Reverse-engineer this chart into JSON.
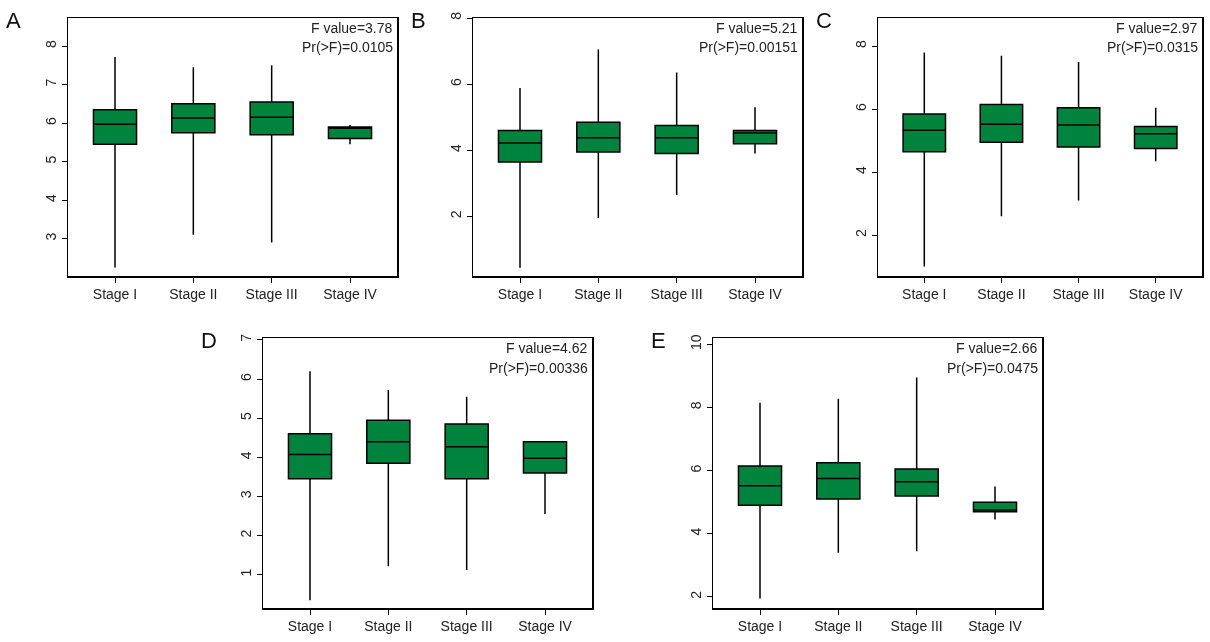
{
  "chart_data": [
    {
      "type": "box",
      "title": "A",
      "categories": [
        "Stage I",
        "Stage II",
        "Stage III",
        "Stage IV"
      ],
      "ylim": [
        2.03,
        8.73
      ],
      "yticks": [
        3,
        4,
        5,
        6,
        7,
        8
      ],
      "grid": false,
      "annotations": [
        "F value=3.78",
        "Pr(>F)=0.0105"
      ],
      "series": [
        {
          "color": "#00843d",
          "boxes": [
            {
              "low": 2.25,
              "q1": 5.45,
              "median": 5.97,
              "q3": 6.35,
              "high": 7.72
            },
            {
              "low": 3.1,
              "q1": 5.75,
              "median": 6.13,
              "q3": 6.5,
              "high": 7.45
            },
            {
              "low": 2.9,
              "q1": 5.7,
              "median": 6.15,
              "q3": 6.55,
              "high": 7.5
            },
            {
              "low": 5.45,
              "q1": 5.6,
              "median": 5.87,
              "q3": 5.9,
              "high": 5.95
            }
          ]
        }
      ]
    },
    {
      "type": "box",
      "title": "B",
      "categories": [
        "Stage I",
        "Stage II",
        "Stage III",
        "Stage IV"
      ],
      "ylim": [
        0.2,
        8
      ],
      "yticks": [
        2,
        4,
        6,
        8
      ],
      "grid": false,
      "annotations": [
        "F value=5.21",
        "Pr(>F)=0.00151"
      ],
      "series": [
        {
          "color": "#00843d",
          "boxes": [
            {
              "low": 0.45,
              "q1": 3.65,
              "median": 4.22,
              "q3": 4.6,
              "high": 5.88
            },
            {
              "low": 1.95,
              "q1": 3.95,
              "median": 4.38,
              "q3": 4.85,
              "high": 7.05
            },
            {
              "low": 2.65,
              "q1": 3.9,
              "median": 4.38,
              "q3": 4.75,
              "high": 6.35
            },
            {
              "low": 3.9,
              "q1": 4.2,
              "median": 4.52,
              "q3": 4.6,
              "high": 5.3
            }
          ]
        }
      ]
    },
    {
      "type": "box",
      "title": "C",
      "categories": [
        "Stage I",
        "Stage II",
        "Stage III",
        "Stage IV"
      ],
      "ylim": [
        0.7,
        8.9
      ],
      "yticks": [
        2,
        4,
        6,
        8
      ],
      "grid": false,
      "annotations": [
        "F value=2.97",
        "Pr(>F)=0.0315"
      ],
      "series": [
        {
          "color": "#00843d",
          "boxes": [
            {
              "low": 1.0,
              "q1": 4.65,
              "median": 5.33,
              "q3": 5.85,
              "high": 7.8
            },
            {
              "low": 2.6,
              "q1": 4.95,
              "median": 5.52,
              "q3": 6.15,
              "high": 7.7
            },
            {
              "low": 3.1,
              "q1": 4.8,
              "median": 5.5,
              "q3": 6.05,
              "high": 7.5
            },
            {
              "low": 4.35,
              "q1": 4.75,
              "median": 5.22,
              "q3": 5.45,
              "high": 6.05
            }
          ]
        }
      ]
    },
    {
      "type": "box",
      "title": "D",
      "categories": [
        "Stage I",
        "Stage II",
        "Stage III",
        "Stage IV"
      ],
      "ylim": [
        0.15,
        7.05
      ],
      "yticks": [
        1,
        2,
        3,
        4,
        5,
        6,
        7
      ],
      "grid": false,
      "annotations": [
        "F value=4.62",
        "Pr(>F)=0.00336"
      ],
      "series": [
        {
          "color": "#00843d",
          "boxes": [
            {
              "low": 0.35,
              "q1": 3.45,
              "median": 4.07,
              "q3": 4.6,
              "high": 6.2
            },
            {
              "low": 1.22,
              "q1": 3.85,
              "median": 4.4,
              "q3": 4.95,
              "high": 5.72
            },
            {
              "low": 1.12,
              "q1": 3.45,
              "median": 4.27,
              "q3": 4.85,
              "high": 5.55
            },
            {
              "low": 2.55,
              "q1": 3.6,
              "median": 3.98,
              "q3": 4.4,
              "high": 4.4
            }
          ]
        }
      ]
    },
    {
      "type": "box",
      "title": "E",
      "categories": [
        "Stage I",
        "Stage II",
        "Stage III",
        "Stage IV"
      ],
      "ylim": [
        1.65,
        10.2
      ],
      "yticks": [
        2,
        4,
        6,
        8,
        10
      ],
      "grid": false,
      "annotations": [
        "F value=2.66",
        "Pr(>F)=0.0475"
      ],
      "series": [
        {
          "color": "#00843d",
          "boxes": [
            {
              "low": 1.95,
              "q1": 4.9,
              "median": 5.52,
              "q3": 6.15,
              "high": 8.15
            },
            {
              "low": 3.4,
              "q1": 5.1,
              "median": 5.75,
              "q3": 6.25,
              "high": 8.28
            },
            {
              "low": 3.45,
              "q1": 5.2,
              "median": 5.65,
              "q3": 6.05,
              "high": 8.95
            },
            {
              "low": 4.45,
              "q1": 4.7,
              "median": 4.75,
              "q3": 5.0,
              "high": 5.5
            }
          ]
        }
      ]
    }
  ]
}
